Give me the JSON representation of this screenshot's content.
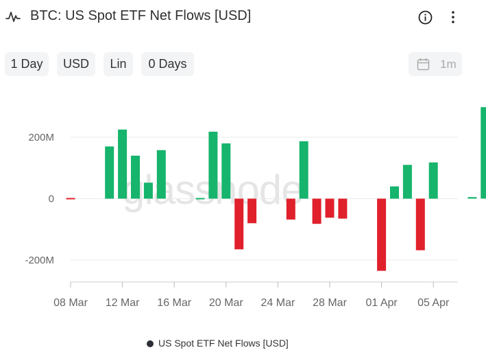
{
  "header": {
    "title": "BTC: US Spot ETF Net Flows [USD]",
    "chart_icon": "line-chart-icon",
    "info_icon": "info-circle-icon",
    "more_icon": "vertical-ellipsis-icon"
  },
  "controls": {
    "resolution": "1 Day",
    "currency": "USD",
    "scale": "Lin",
    "moving_average": "0 Days",
    "range_icon": "calendar-icon",
    "range": "1m"
  },
  "watermark": "glassnode",
  "legend": {
    "label": "US Spot ETF Net Flows [USD]"
  },
  "colors": {
    "positive": "#16b46c",
    "negative": "#e0202b",
    "legend_dot": "#2d2f36"
  },
  "chart_data": {
    "type": "bar",
    "x_tick_labels": [
      "08 Mar",
      "12 Mar",
      "16 Mar",
      "20 Mar",
      "24 Mar",
      "28 Mar",
      "01 Apr",
      "05 Apr"
    ],
    "y_tick_labels": [
      "200M",
      "0",
      "-200M"
    ],
    "ylim": [
      -270000000,
      330000000
    ],
    "grid": true,
    "legend_position": "bottom",
    "series": [
      {
        "name": "US Spot ETF Net Flows [USD]",
        "x": [
          "2024-03-08",
          "2024-03-11",
          "2024-03-12",
          "2024-03-13",
          "2024-03-14",
          "2024-03-15",
          "2024-03-18",
          "2024-03-19",
          "2024-03-20",
          "2024-03-21",
          "2024-03-22",
          "2024-03-25",
          "2024-03-26",
          "2024-03-27",
          "2024-03-28",
          "2024-03-29",
          "2024-04-01",
          "2024-04-02",
          "2024-04-03",
          "2024-04-04",
          "2024-04-05",
          "2024-04-06",
          "2024-04-07",
          "2024-04-08",
          "2024-04-09"
        ],
        "values": [
          -3000000,
          170000000,
          225000000,
          140000000,
          52000000,
          158000000,
          2000000,
          218000000,
          180000000,
          -165000000,
          -80000000,
          -68000000,
          187000000,
          -82000000,
          -62000000,
          -65000000,
          -235000000,
          40000000,
          110000000,
          -168000000,
          118000000,
          0,
          0,
          5000000,
          298000000
        ]
      }
    ]
  }
}
